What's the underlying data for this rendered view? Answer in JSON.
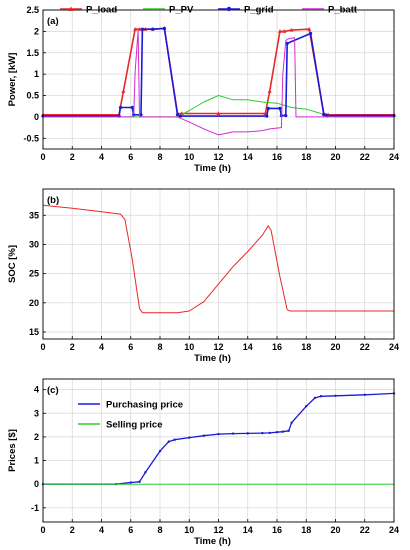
{
  "chart_data": [
    {
      "type": "line",
      "panel_label": "(a)",
      "xlabel": "Time (h)",
      "ylabel": "Power, [kW]",
      "xlim": [
        0,
        24
      ],
      "ylim": [
        -0.75,
        2.5
      ],
      "xticks": [
        "0",
        "2",
        "4",
        "6",
        "8",
        "10",
        "12",
        "14",
        "16",
        "18",
        "20",
        "22",
        "24"
      ],
      "yticks": [
        "2.5",
        "2",
        "1.5",
        "1",
        "0.5",
        "0",
        "-0.5"
      ],
      "ytick_values": [
        2.5,
        2,
        1.5,
        1,
        0.5,
        0,
        -0.5
      ],
      "grid": true,
      "legend_position": "top",
      "series": [
        {
          "name": "P_load",
          "color": "#e8282b",
          "marker": "triangle",
          "x": [
            0,
            5.2,
            5.5,
            6.3,
            6.6,
            7,
            7.5,
            8.3,
            9.2,
            9.5,
            12,
            15.2,
            15.5,
            16.2,
            16.5,
            17,
            18.2,
            19.2,
            19.5,
            24
          ],
          "y": [
            0.05,
            0.05,
            0.6,
            2.05,
            2.05,
            2.05,
            2.05,
            2.07,
            0.08,
            0.08,
            0.08,
            0.08,
            0.6,
            2.0,
            2.0,
            2.03,
            2.05,
            0.08,
            0.05,
            0.05
          ]
        },
        {
          "name": "P_PV",
          "color": "#2ecc2e",
          "x": [
            0,
            9.2,
            10,
            11,
            12,
            13,
            14,
            15,
            16,
            17,
            18,
            19,
            20,
            24
          ],
          "y": [
            0,
            0,
            0.15,
            0.35,
            0.5,
            0.4,
            0.4,
            0.35,
            0.32,
            0.22,
            0.18,
            0.08,
            0,
            0
          ]
        },
        {
          "name": "P_grid",
          "color": "#1a1adb",
          "marker": "circle",
          "x": [
            0,
            5.2,
            5.3,
            6.1,
            6.2,
            6.7,
            6.8,
            7.5,
            8.3,
            9.2,
            9.4,
            15.3,
            15.4,
            16.2,
            16.3,
            16.6,
            16.7,
            18.3,
            19.2,
            19.4,
            24
          ],
          "y": [
            0.02,
            0.02,
            0.22,
            0.22,
            0.05,
            0.05,
            2.05,
            2.05,
            2.07,
            0.05,
            0.02,
            0.02,
            0.2,
            0.2,
            0.03,
            0.03,
            1.72,
            1.95,
            0.05,
            0.03,
            0.03
          ]
        },
        {
          "name": "P_batt",
          "color": "#d12bd1",
          "x": [
            0,
            6.2,
            6.3,
            6.5,
            6.6,
            9.2,
            10,
            11,
            12,
            13,
            14,
            15,
            15.5,
            16.3,
            16.4,
            16.6,
            16.7,
            17.2,
            17.3,
            24
          ],
          "y": [
            0,
            0,
            1.05,
            2.02,
            0,
            0,
            -0.12,
            -0.28,
            -0.42,
            -0.35,
            -0.35,
            -0.32,
            -0.28,
            -0.25,
            1.0,
            1.78,
            1.82,
            1.85,
            0,
            0
          ]
        }
      ]
    },
    {
      "type": "line",
      "panel_label": "(b)",
      "xlabel": "Time (h)",
      "ylabel": "SOC [%]",
      "xlim": [
        0,
        24
      ],
      "ylim": [
        13.8,
        39.5
      ],
      "xticks": [
        "0",
        "2",
        "4",
        "6",
        "8",
        "10",
        "12",
        "14",
        "16",
        "18",
        "20",
        "22",
        "24"
      ],
      "yticks": [
        "35",
        "30",
        "25",
        "20",
        "15"
      ],
      "ytick_values": [
        35,
        30,
        25,
        20,
        15
      ],
      "grid": true,
      "series": [
        {
          "name": "",
          "color": "#e8282b",
          "x": [
            0,
            2,
            4,
            5.3,
            5.6,
            6.1,
            6.6,
            6.8,
            9.2,
            10,
            11,
            12,
            13,
            14,
            15,
            15.4,
            15.6,
            16.2,
            16.7,
            16.9,
            24
          ],
          "y": [
            36.7,
            36.2,
            35.6,
            35.2,
            34.3,
            27.5,
            19,
            18.3,
            18.3,
            18.6,
            20.2,
            23.2,
            26.2,
            28.8,
            31.6,
            33.2,
            32.4,
            24.5,
            18.8,
            18.6,
            18.6
          ]
        }
      ]
    },
    {
      "type": "line",
      "panel_label": "(c)",
      "xlabel": "Time (h)",
      "ylabel": "Prices [$]",
      "xlim": [
        0,
        24
      ],
      "ylim": [
        -1.6,
        4.45
      ],
      "xticks": [
        "0",
        "2",
        "4",
        "6",
        "8",
        "10",
        "12",
        "14",
        "16",
        "18",
        "20",
        "22",
        "24"
      ],
      "yticks": [
        "4",
        "3",
        "2",
        "1",
        "0",
        "-1"
      ],
      "ytick_values": [
        4,
        3,
        2,
        1,
        0,
        -1
      ],
      "grid": true,
      "legend_position": "top-left",
      "series": [
        {
          "name": "Purchasing price",
          "color": "#1a1adb",
          "marker": "dot",
          "x": [
            0,
            5,
            6,
            6.6,
            7,
            8,
            8.6,
            9,
            10,
            11,
            12,
            13,
            14,
            15,
            15.5,
            16,
            16.4,
            16.8,
            17,
            18,
            18.6,
            19,
            20,
            22,
            24
          ],
          "y": [
            0,
            0,
            0.07,
            0.1,
            0.5,
            1.4,
            1.8,
            1.88,
            1.97,
            2.05,
            2.12,
            2.14,
            2.15,
            2.16,
            2.17,
            2.2,
            2.22,
            2.26,
            2.6,
            3.3,
            3.65,
            3.72,
            3.74,
            3.78,
            3.84
          ]
        },
        {
          "name": "Selling price",
          "color": "#2ecc2e",
          "x": [
            0,
            24
          ],
          "y": [
            0,
            0
          ]
        }
      ]
    }
  ]
}
